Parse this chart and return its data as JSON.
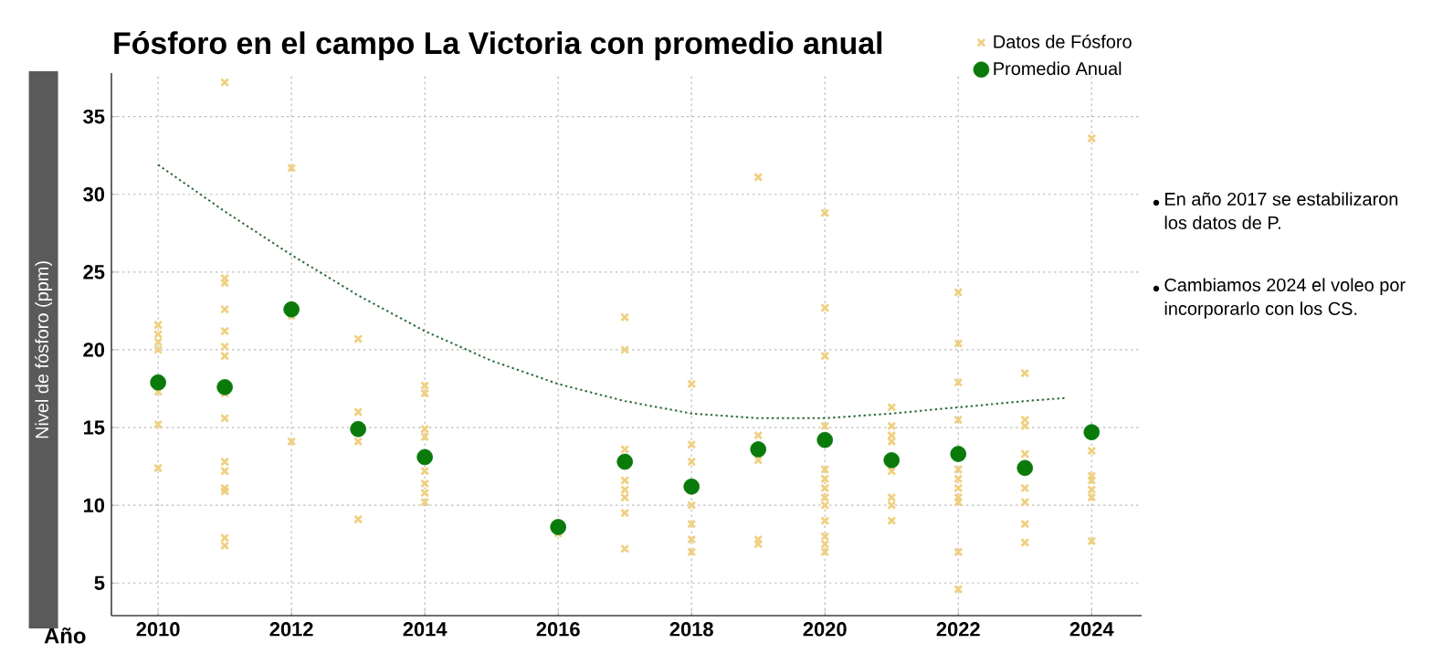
{
  "chart_data": {
    "type": "scatter",
    "title": "Fósforo en el campo La Victoria con promedio anual",
    "xlabel": "Año",
    "ylabel": "Nivel de fósforo (ppm)",
    "xlim": [
      2009.3,
      2024.75
    ],
    "xticks": [
      2010,
      2012,
      2014,
      2016,
      2018,
      2020,
      2022,
      2024
    ],
    "ylim": [
      2.9,
      37.8
    ],
    "yticks": [
      5,
      10,
      15,
      20,
      25,
      30,
      35
    ],
    "grid": true,
    "legend": "top right",
    "series": [
      {
        "name": "Datos de Fósforo",
        "type": "scatter",
        "marker": "cross",
        "color": "#f0d080",
        "x": [
          2010,
          2010,
          2010,
          2010,
          2010,
          2010,
          2010,
          2011,
          2011,
          2011,
          2011,
          2011,
          2011,
          2011,
          2011,
          2011,
          2011,
          2011,
          2011,
          2011,
          2011,
          2011,
          2012,
          2012,
          2012,
          2013,
          2013,
          2013,
          2013,
          2014,
          2014,
          2014,
          2014,
          2014,
          2014,
          2014,
          2014,
          2016,
          2017,
          2017,
          2017,
          2017,
          2017,
          2017,
          2017,
          2017,
          2018,
          2018,
          2018,
          2018,
          2018,
          2018,
          2018,
          2019,
          2019,
          2019,
          2019,
          2019,
          2020,
          2020,
          2020,
          2020,
          2020,
          2020,
          2020,
          2020,
          2020,
          2020,
          2020,
          2020,
          2020,
          2021,
          2021,
          2021,
          2021,
          2021,
          2021,
          2021,
          2021,
          2022,
          2022,
          2022,
          2022,
          2022,
          2022,
          2022,
          2022,
          2022,
          2022,
          2022,
          2023,
          2023,
          2023,
          2023,
          2023,
          2023,
          2023,
          2023,
          2024,
          2024,
          2024,
          2024,
          2024,
          2024,
          2024
        ],
        "values": [
          21.6,
          21.0,
          20.5,
          20.0,
          17.3,
          15.2,
          12.4,
          37.2,
          24.6,
          24.3,
          22.6,
          21.2,
          20.2,
          19.6,
          15.6,
          12.8,
          12.2,
          11.1,
          10.9,
          7.9,
          7.4,
          17.2,
          31.7,
          22.2,
          14.1,
          20.7,
          16.0,
          14.1,
          9.1,
          17.7,
          17.2,
          14.9,
          14.4,
          12.2,
          11.4,
          10.8,
          10.2,
          8.2,
          22.1,
          20.0,
          13.6,
          11.6,
          11.0,
          10.5,
          9.5,
          7.2,
          17.8,
          13.9,
          12.8,
          10.0,
          8.8,
          7.8,
          7.0,
          31.1,
          14.5,
          12.9,
          7.8,
          7.5,
          28.8,
          22.7,
          19.6,
          15.1,
          12.3,
          11.7,
          11.1,
          10.5,
          10.0,
          9.0,
          8.0,
          7.5,
          7.0,
          16.3,
          15.1,
          14.5,
          14.1,
          12.2,
          10.5,
          10.0,
          9.0,
          23.7,
          20.4,
          17.9,
          15.5,
          12.3,
          11.7,
          11.1,
          10.5,
          10.2,
          7.0,
          4.6,
          18.5,
          15.5,
          15.1,
          13.3,
          11.1,
          10.2,
          8.8,
          7.6,
          33.6,
          13.5,
          11.9,
          11.6,
          11.0,
          10.5,
          7.7
        ]
      },
      {
        "name": "Promedio Anual",
        "type": "scatter",
        "marker": "circle",
        "color": "#0a7a0a",
        "x": [
          2010,
          2011,
          2012,
          2013,
          2014,
          2016,
          2017,
          2018,
          2019,
          2020,
          2021,
          2022,
          2023,
          2024
        ],
        "values": [
          17.9,
          17.6,
          22.6,
          14.9,
          13.1,
          8.6,
          12.8,
          11.2,
          13.6,
          14.2,
          12.9,
          13.3,
          12.4,
          14.7
        ]
      },
      {
        "type": "line",
        "marker": "none",
        "line_style": "dotted",
        "color": "#2e6b3a",
        "x": [
          2010,
          2011,
          2012,
          2013,
          2014,
          2015,
          2016,
          2017,
          2018,
          2019,
          2020,
          2021,
          2022,
          2023,
          2023.6
        ],
        "values": [
          31.9,
          28.9,
          26.1,
          23.5,
          21.2,
          19.3,
          17.8,
          16.7,
          15.9,
          15.6,
          15.6,
          15.9,
          16.3,
          16.7,
          16.9
        ]
      }
    ],
    "annotations": [
      "En año 2017 se estabilizaron los datos de P.",
      "Cambiamos 2024 el voleo por incorporarlo con los CS."
    ]
  }
}
